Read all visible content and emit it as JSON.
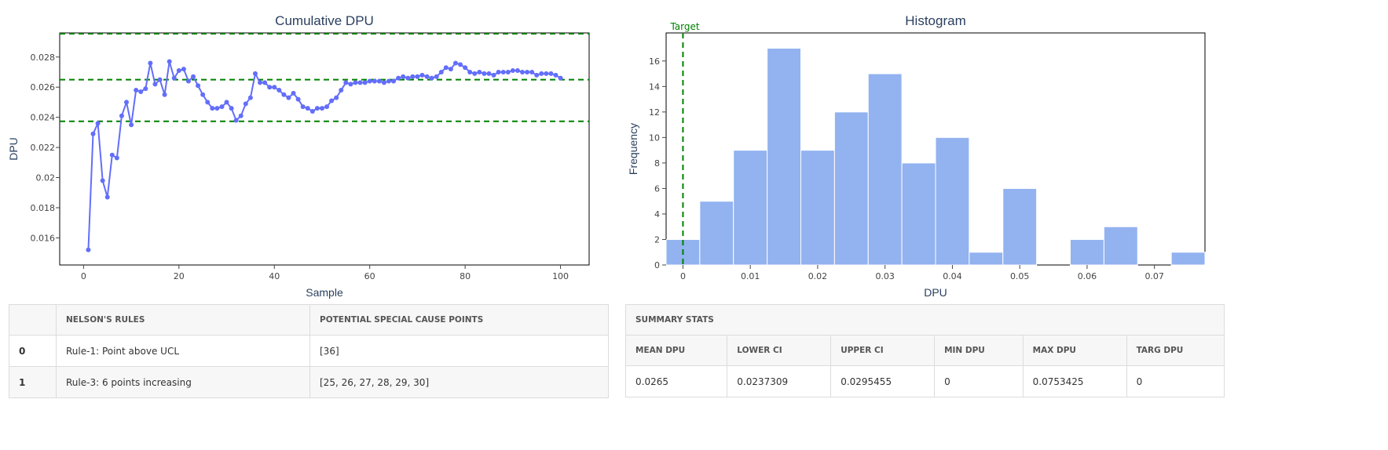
{
  "chart_data": [
    {
      "type": "line",
      "title": "Cumulative DPU",
      "xlabel": "Sample",
      "ylabel": "DPU",
      "xlim": [
        -5,
        106
      ],
      "ylim": [
        0.0142,
        0.0296
      ],
      "xticks": [
        0,
        20,
        40,
        60,
        80,
        100
      ],
      "yticks": [
        0.016,
        0.018,
        0.02,
        0.022,
        0.024,
        0.026,
        0.028
      ],
      "ytick_labels": [
        "0.016",
        "0.018",
        "0.02",
        "0.022",
        "0.024",
        "0.026",
        "0.028"
      ],
      "grid": false,
      "series": [
        {
          "color": "#636efa",
          "x": [
            1,
            2,
            3,
            4,
            5,
            6,
            7,
            8,
            9,
            10,
            11,
            12,
            13,
            14,
            15,
            16,
            17,
            18,
            19,
            20,
            21,
            22,
            23,
            24,
            25,
            26,
            27,
            28,
            29,
            30,
            31,
            32,
            33,
            34,
            35,
            36,
            37,
            38,
            39,
            40,
            41,
            42,
            43,
            44,
            45,
            46,
            47,
            48,
            49,
            50,
            51,
            52,
            53,
            54,
            55,
            56,
            57,
            58,
            59,
            60,
            61,
            62,
            63,
            64,
            65,
            66,
            67,
            68,
            69,
            70,
            71,
            72,
            73,
            74,
            75,
            76,
            77,
            78,
            79,
            80,
            81,
            82,
            83,
            84,
            85,
            86,
            87,
            88,
            89,
            90,
            91,
            92,
            93,
            94,
            95,
            96,
            97,
            98,
            99,
            100
          ],
          "y": [
            0.0152,
            0.0229,
            0.0236,
            0.0198,
            0.0187,
            0.0215,
            0.0213,
            0.0241,
            0.025,
            0.0235,
            0.0258,
            0.0257,
            0.0259,
            0.0276,
            0.0262,
            0.0265,
            0.0255,
            0.0277,
            0.0266,
            0.0271,
            0.0272,
            0.0264,
            0.0267,
            0.0261,
            0.0255,
            0.025,
            0.0246,
            0.0246,
            0.0247,
            0.025,
            0.0246,
            0.0238,
            0.0241,
            0.0249,
            0.0253,
            0.0269,
            0.0263,
            0.0263,
            0.026,
            0.026,
            0.0258,
            0.0255,
            0.0253,
            0.0256,
            0.0252,
            0.0247,
            0.0246,
            0.0244,
            0.0246,
            0.0246,
            0.0247,
            0.0251,
            0.0253,
            0.0258,
            0.0263,
            0.0262,
            0.0263,
            0.0263,
            0.0263,
            0.0264,
            0.0264,
            0.0264,
            0.0263,
            0.0264,
            0.0264,
            0.0266,
            0.0267,
            0.0266,
            0.0267,
            0.0267,
            0.0268,
            0.0267,
            0.0266,
            0.0267,
            0.027,
            0.0273,
            0.0272,
            0.0276,
            0.0275,
            0.0273,
            0.027,
            0.0269,
            0.027,
            0.0269,
            0.0269,
            0.0268,
            0.027,
            0.027,
            0.027,
            0.0271,
            0.0271,
            0.027,
            0.027,
            0.027,
            0.0268,
            0.0269,
            0.0269,
            0.0269,
            0.0268,
            0.0266
          ]
        }
      ],
      "reference_lines": [
        {
          "y": 0.0295455,
          "color": "#008000",
          "style": "dashed"
        },
        {
          "y": 0.0265,
          "color": "#008000",
          "style": "dashed"
        },
        {
          "y": 0.0237309,
          "color": "#008000",
          "style": "dashed"
        }
      ]
    },
    {
      "type": "bar",
      "title": "Histogram",
      "xlabel": "DPU",
      "ylabel": "Frequency",
      "xlim": [
        -0.0025,
        0.0775
      ],
      "ylim": [
        0,
        18.2
      ],
      "xticks": [
        0,
        0.01,
        0.02,
        0.03,
        0.04,
        0.05,
        0.06,
        0.07
      ],
      "xtick_labels": [
        "0",
        "0.01",
        "0.02",
        "0.03",
        "0.04",
        "0.05",
        "0.06",
        "0.07"
      ],
      "yticks": [
        0,
        2,
        4,
        6,
        8,
        10,
        12,
        14,
        16
      ],
      "bin_width": 0.005,
      "bin_starts": [
        -0.0025,
        0.0025,
        0.0075,
        0.0125,
        0.0175,
        0.0225,
        0.0275,
        0.0325,
        0.0375,
        0.0425,
        0.0475,
        0.0525,
        0.0575,
        0.0625,
        0.0675,
        0.0725
      ],
      "values": [
        2,
        5,
        9,
        17,
        9,
        12,
        15,
        8,
        10,
        1,
        6,
        0,
        2,
        3,
        0,
        1
      ],
      "bar_color": "#92b2f0",
      "target": {
        "x": 0,
        "label": "Target",
        "color": "#008000",
        "style": "dashed"
      }
    }
  ],
  "rules_table": {
    "headers": [
      "",
      "NELSON'S RULES",
      "POTENTIAL SPECIAL CAUSE POINTS"
    ],
    "rows": [
      [
        "0",
        "Rule-1: Point above UCL",
        "[36]"
      ],
      [
        "1",
        "Rule-3: 6 points increasing",
        "[25, 26, 27, 28, 29, 30]"
      ]
    ]
  },
  "stats_table": {
    "caption": "SUMMARY STATS",
    "headers": [
      "MEAN DPU",
      "LOWER CI",
      "UPPER CI",
      "MIN DPU",
      "MAX DPU",
      "TARG DPU"
    ],
    "values": [
      "0.0265",
      "0.0237309",
      "0.0295455",
      "0",
      "0.0753425",
      "0"
    ]
  }
}
